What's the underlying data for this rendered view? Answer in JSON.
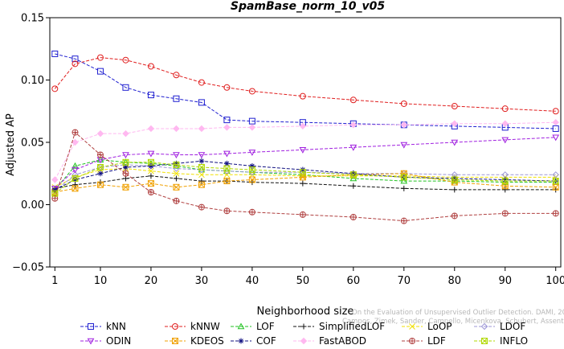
{
  "chart_data": {
    "type": "line",
    "title": "SpamBase_norm_10_v05",
    "xlabel": "Neighborhood size",
    "ylabel": "Adjusted AP",
    "xlim": [
      0,
      101
    ],
    "ylim": [
      -0.05,
      0.15
    ],
    "x_ticks": [
      1,
      10,
      20,
      30,
      40,
      50,
      60,
      70,
      80,
      90,
      100
    ],
    "y_ticks": [
      -0.05,
      0.0,
      0.05,
      0.1,
      0.15
    ],
    "y_tick_labels": [
      "−0.05",
      "0.00",
      "0.05",
      "0.10",
      "0.15"
    ],
    "x_tick_labels": [
      "1",
      "10",
      "20",
      "30",
      "40",
      "50",
      "60",
      "70",
      "80",
      "90",
      "100"
    ],
    "grid": false,
    "legend_position": "bottom",
    "watermark": "Campos, Zimek, Sander, Campello, Micenkova, Schubert, Assent, Houle On the Evaluation of Unsupervised Outlier Detection. DAMI, 2015.",
    "x": [
      1,
      5,
      10,
      15,
      20,
      25,
      30,
      35,
      40,
      50,
      60,
      70,
      80,
      90,
      100
    ],
    "series": [
      {
        "name": "kNN",
        "color": "#1f1fd0",
        "marker": "square",
        "values": [
          0.121,
          0.117,
          0.107,
          0.094,
          0.088,
          0.085,
          0.082,
          0.068,
          0.067,
          0.066,
          0.065,
          0.064,
          0.063,
          0.062,
          0.061
        ]
      },
      {
        "name": "kNNW",
        "color": "#e01f1f",
        "marker": "circle",
        "values": [
          0.093,
          0.113,
          0.118,
          0.116,
          0.111,
          0.104,
          0.098,
          0.094,
          0.091,
          0.087,
          0.084,
          0.081,
          0.079,
          0.077,
          0.075
        ]
      },
      {
        "name": "LOF",
        "color": "#22c222",
        "marker": "triangle-up",
        "values": [
          0.012,
          0.031,
          0.036,
          0.034,
          0.033,
          0.031,
          0.028,
          0.027,
          0.026,
          0.024,
          0.021,
          0.019,
          0.019,
          0.018,
          0.018
        ]
      },
      {
        "name": "SimplifiedLOF",
        "color": "#111111",
        "marker": "plus",
        "values": [
          0.013,
          0.016,
          0.018,
          0.021,
          0.023,
          0.021,
          0.019,
          0.019,
          0.018,
          0.017,
          0.015,
          0.013,
          0.012,
          0.012,
          0.012
        ]
      },
      {
        "name": "LoOP",
        "color": "#f0e000",
        "marker": "x",
        "values": [
          0.014,
          0.022,
          0.028,
          0.029,
          0.027,
          0.025,
          0.024,
          0.024,
          0.024,
          0.023,
          0.023,
          0.023,
          0.022,
          0.022,
          0.022
        ]
      },
      {
        "name": "LDOF",
        "color": "#9d97d6",
        "marker": "diamond",
        "values": [
          0.011,
          0.024,
          0.03,
          0.032,
          0.031,
          0.029,
          0.028,
          0.027,
          0.026,
          0.026,
          0.025,
          0.025,
          0.024,
          0.024,
          0.024
        ]
      },
      {
        "name": "ODIN",
        "color": "#a020e0",
        "marker": "triangle-down",
        "values": [
          0.013,
          0.028,
          0.036,
          0.04,
          0.041,
          0.04,
          0.04,
          0.041,
          0.042,
          0.044,
          0.046,
          0.048,
          0.05,
          0.052,
          0.054
        ]
      },
      {
        "name": "KDEOS",
        "color": "#f0a000",
        "marker": "square-x",
        "values": [
          0.01,
          0.013,
          0.016,
          0.014,
          0.017,
          0.014,
          0.016,
          0.019,
          0.02,
          0.022,
          0.024,
          0.025,
          0.018,
          0.015,
          0.014
        ]
      },
      {
        "name": "COF",
        "color": "#101080",
        "marker": "asterisk",
        "values": [
          0.012,
          0.02,
          0.025,
          0.03,
          0.031,
          0.033,
          0.035,
          0.033,
          0.031,
          0.028,
          0.025,
          0.022,
          0.021,
          0.02,
          0.019
        ]
      },
      {
        "name": "FastABOD",
        "color": "#ffb8f0",
        "marker": "diamond-filled",
        "values": [
          0.02,
          0.05,
          0.057,
          0.057,
          0.061,
          0.061,
          0.061,
          0.062,
          0.062,
          0.063,
          0.064,
          0.064,
          0.065,
          0.065,
          0.066
        ]
      },
      {
        "name": "LDF",
        "color": "#b04040",
        "marker": "circle-plus",
        "values": [
          0.005,
          0.058,
          0.04,
          0.025,
          0.01,
          0.003,
          -0.002,
          -0.005,
          -0.006,
          -0.008,
          -0.01,
          -0.013,
          -0.009,
          -0.007,
          -0.007
        ]
      },
      {
        "name": "INFLO",
        "color": "#b0d800",
        "marker": "square-x",
        "values": [
          0.009,
          0.021,
          0.03,
          0.034,
          0.034,
          0.032,
          0.03,
          0.029,
          0.028,
          0.026,
          0.024,
          0.022,
          0.02,
          0.019,
          0.019
        ]
      }
    ]
  }
}
